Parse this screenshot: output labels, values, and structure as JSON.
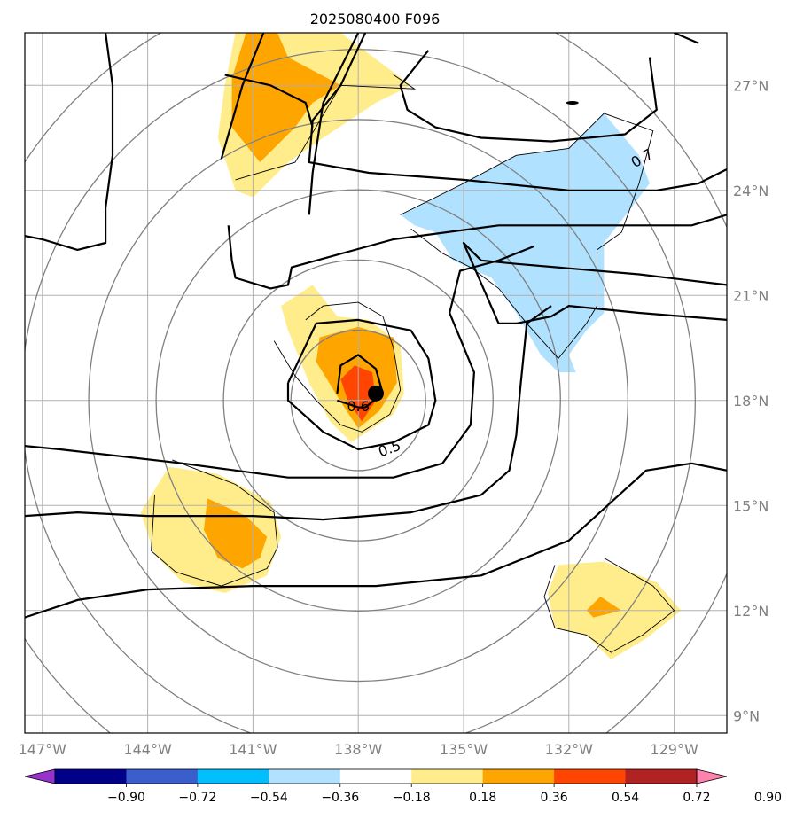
{
  "title": "2025080400 F096",
  "chart_data": {
    "type": "map-contour",
    "title": "2025080400 F096",
    "lon_range": [
      -147.5,
      -127.5
    ],
    "lat_range": [
      8.5,
      28.5
    ],
    "x_ticks": [
      {
        "lon": -147,
        "label": "147°W"
      },
      {
        "lon": -144,
        "label": "144°W"
      },
      {
        "lon": -141,
        "label": "141°W"
      },
      {
        "lon": -138,
        "label": "138°W"
      },
      {
        "lon": -135,
        "label": "135°W"
      },
      {
        "lon": -132,
        "label": "132°W"
      },
      {
        "lon": -129,
        "label": "129°W"
      }
    ],
    "y_ticks": [
      {
        "lat": 9,
        "label": "9°N"
      },
      {
        "lat": 12,
        "label": "12°N"
      },
      {
        "lat": 15,
        "label": "15°N"
      },
      {
        "lat": 18,
        "label": "18°N"
      },
      {
        "lat": 21,
        "label": "21°N"
      },
      {
        "lat": 24,
        "label": "24°N"
      },
      {
        "lat": 27,
        "label": "27°N"
      }
    ],
    "contour_labels": [
      {
        "text": "0.7",
        "lon": -129.9,
        "lat": 24.9
      },
      {
        "text": "0.6",
        "lon": -138.0,
        "lat": 17.8
      },
      {
        "text": "0.5",
        "lon": -137.1,
        "lat": 16.6
      }
    ],
    "storm_center": {
      "lon": -137.5,
      "lat": 18.2
    },
    "range_rings_deg": [
      2,
      4,
      6,
      8,
      10,
      12
    ],
    "colorbar": {
      "labels": [
        "−0.90",
        "−0.72",
        "−0.54",
        "−0.36",
        "−0.18",
        "0.18",
        "0.36",
        "0.54",
        "0.72",
        "0.90"
      ],
      "colors": [
        "#9932cc",
        "#00008b",
        "#3a5fcd",
        "#00bfff",
        "#b0e2ff",
        "#ffffff",
        "#ffec8b",
        "#ffa500",
        "#ff4500",
        "#b22222",
        "#ff82ab"
      ]
    },
    "shaded_regions": [
      {
        "level": "0.18-0.36",
        "color": "#ffec8b",
        "polys": [
          [
            [
              -141.5,
              28.5
            ],
            [
              -138.5,
              28.5
            ],
            [
              -136.5,
              27.0
            ],
            [
              -137.5,
              26.5
            ],
            [
              -139.0,
              25.5
            ],
            [
              -140.0,
              24.8
            ],
            [
              -141.0,
              23.8
            ],
            [
              -141.5,
              24.0
            ],
            [
              -142.0,
              25.5
            ],
            [
              -141.8,
              27.0
            ]
          ],
          [
            [
              -139.3,
              21.3
            ],
            [
              -138.6,
              20.4
            ],
            [
              -137.7,
              20.3
            ],
            [
              -136.8,
              19.6
            ],
            [
              -136.7,
              18.2
            ],
            [
              -137.0,
              17.6
            ],
            [
              -137.6,
              17.2
            ],
            [
              -138.2,
              16.8
            ],
            [
              -138.8,
              17.4
            ],
            [
              -139.4,
              18.5
            ],
            [
              -140.0,
              20.0
            ],
            [
              -140.2,
              20.7
            ]
          ],
          [
            [
              -143.4,
              16.1
            ],
            [
              -142.0,
              15.9
            ],
            [
              -140.5,
              15.1
            ],
            [
              -140.2,
              14.1
            ],
            [
              -140.6,
              13.0
            ],
            [
              -141.8,
              12.5
            ],
            [
              -143.0,
              12.8
            ],
            [
              -143.8,
              13.6
            ],
            [
              -144.2,
              14.8
            ]
          ],
          [
            [
              -131.0,
              13.4
            ],
            [
              -129.5,
              12.8
            ],
            [
              -128.8,
              12.0
            ],
            [
              -129.8,
              11.2
            ],
            [
              -130.8,
              10.6
            ],
            [
              -131.5,
              11.3
            ],
            [
              -132.4,
              11.5
            ],
            [
              -132.6,
              12.5
            ],
            [
              -132.3,
              13.3
            ]
          ]
        ]
      },
      {
        "level": "0.36-0.54",
        "color": "#ffa500",
        "polys": [
          [
            [
              -141.2,
              28.5
            ],
            [
              -140.3,
              28.5
            ],
            [
              -140.0,
              27.8
            ],
            [
              -138.5,
              27.0
            ],
            [
              -139.3,
              26.5
            ],
            [
              -139.8,
              25.8
            ],
            [
              -140.8,
              24.8
            ],
            [
              -141.6,
              25.8
            ],
            [
              -141.6,
              27.2
            ]
          ],
          [
            [
              -139.1,
              19.8
            ],
            [
              -138.0,
              20.1
            ],
            [
              -137.0,
              19.8
            ],
            [
              -136.9,
              18.5
            ],
            [
              -137.4,
              17.7
            ],
            [
              -138.0,
              17.2
            ],
            [
              -138.4,
              17.8
            ],
            [
              -139.2,
              19.1
            ]
          ],
          [
            [
              -142.3,
              15.2
            ],
            [
              -141.2,
              14.7
            ],
            [
              -140.6,
              14.1
            ],
            [
              -140.8,
              13.5
            ],
            [
              -141.3,
              13.2
            ],
            [
              -142.0,
              13.5
            ],
            [
              -142.4,
              14.3
            ]
          ],
          [
            [
              -131.1,
              12.4
            ],
            [
              -130.5,
              12.0
            ],
            [
              -131.3,
              11.8
            ],
            [
              -131.5,
              12.0
            ]
          ]
        ]
      },
      {
        "level": "0.54-0.72",
        "color": "#ff4500",
        "polys": [
          [
            [
              -138.1,
              19.0
            ],
            [
              -137.6,
              18.8
            ],
            [
              -137.5,
              18.0
            ],
            [
              -137.9,
              17.4
            ],
            [
              -138.3,
              18.0
            ],
            [
              -138.5,
              18.6
            ]
          ]
        ]
      },
      {
        "level": "-0.36--0.18",
        "color": "#b0e2ff",
        "polys": [
          [
            [
              -136.8,
              23.3
            ],
            [
              -135.0,
              24.2
            ],
            [
              -133.5,
              25.0
            ],
            [
              -132.0,
              25.2
            ],
            [
              -131.0,
              26.2
            ],
            [
              -130.0,
              25.0
            ],
            [
              -129.7,
              24.2
            ],
            [
              -130.3,
              23.4
            ],
            [
              -131.0,
              22.5
            ],
            [
              -131.0,
              20.5
            ],
            [
              -131.5,
              20.0
            ],
            [
              -132.0,
              19.3
            ],
            [
              -131.8,
              18.8
            ],
            [
              -132.3,
              18.8
            ],
            [
              -132.8,
              19.3
            ],
            [
              -133.5,
              20.5
            ],
            [
              -134.2,
              21.5
            ],
            [
              -135.3,
              22.0
            ],
            [
              -135.8,
              22.8
            ],
            [
              -136.4,
              23.0
            ]
          ]
        ]
      }
    ],
    "contour_lines_solid_black": [
      [
        [
          -147.5,
          22.7
        ],
        [
          -147.0,
          22.6
        ],
        [
          -146.0,
          22.3
        ],
        [
          -145.2,
          22.5
        ],
        [
          -145.2,
          23.5
        ],
        [
          -145.0,
          25.0
        ],
        [
          -145.0,
          27.0
        ],
        [
          -145.2,
          28.5
        ]
      ],
      [
        [
          -140.7,
          28.5
        ],
        [
          -141.3,
          27.0
        ],
        [
          -141.9,
          24.9
        ]
      ],
      [
        [
          -138.0,
          28.5
        ],
        [
          -139.0,
          26.5
        ],
        [
          -139.3,
          24.5
        ],
        [
          -139.4,
          23.3
        ]
      ],
      [
        [
          -137.8,
          28.5
        ],
        [
          -138.5,
          27.0
        ],
        [
          -139.3,
          26.0
        ],
        [
          -139.4,
          24.8
        ],
        [
          -137.7,
          24.5
        ],
        [
          -135.0,
          24.3
        ],
        [
          -132.0,
          24.0
        ],
        [
          -129.5,
          24.0
        ],
        [
          -128.3,
          24.2
        ],
        [
          -127.5,
          24.6
        ]
      ],
      [
        [
          -136.0,
          28.0
        ],
        [
          -136.8,
          27.0
        ],
        [
          -136.6,
          26.3
        ],
        [
          -135.8,
          25.8
        ],
        [
          -134.5,
          25.5
        ],
        [
          -132.5,
          25.4
        ],
        [
          -130.4,
          25.6
        ],
        [
          -129.5,
          26.3
        ],
        [
          -129.7,
          27.8
        ]
      ],
      [
        [
          -129.0,
          28.5
        ],
        [
          -128.3,
          28.2
        ]
      ],
      [
        [
          -141.8,
          27.3
        ],
        [
          -140.5,
          27.0
        ],
        [
          -139.5,
          26.5
        ],
        [
          -139.3,
          25.8
        ]
      ],
      [
        [
          -141.7,
          23.0
        ],
        [
          -141.6,
          22.0
        ],
        [
          -141.5,
          21.5
        ],
        [
          -140.5,
          21.2
        ],
        [
          -140.0,
          21.3
        ],
        [
          -139.9,
          21.8
        ],
        [
          -137.0,
          22.6
        ],
        [
          -134.0,
          23.0
        ],
        [
          -131.0,
          23.0
        ],
        [
          -128.5,
          23.0
        ],
        [
          -127.5,
          23.3
        ]
      ],
      [
        [
          -127.5,
          20.3
        ],
        [
          -130.0,
          20.5
        ],
        [
          -132.0,
          20.7
        ],
        [
          -132.5,
          20.4
        ],
        [
          -133.5,
          20.2
        ],
        [
          -134.0,
          20.2
        ],
        [
          -135.0,
          22.5
        ],
        [
          -134.5,
          22.0
        ],
        [
          -133.5,
          21.9
        ],
        [
          -130.0,
          21.6
        ],
        [
          -127.5,
          21.3
        ]
      ],
      [
        [
          -147.5,
          16.7
        ],
        [
          -146.5,
          16.6
        ],
        [
          -143.0,
          16.2
        ],
        [
          -140.0,
          15.8
        ],
        [
          -137.0,
          15.8
        ],
        [
          -135.6,
          16.2
        ],
        [
          -134.8,
          17.3
        ],
        [
          -134.7,
          18.8
        ],
        [
          -135.4,
          20.5
        ],
        [
          -135.1,
          21.7
        ],
        [
          -134.0,
          22.0
        ],
        [
          -133.0,
          22.4
        ]
      ],
      [
        [
          -147.5,
          14.7
        ],
        [
          -146.0,
          14.8
        ],
        [
          -144.0,
          14.7
        ],
        [
          -141.0,
          14.7
        ],
        [
          -139.0,
          14.6
        ],
        [
          -136.5,
          14.8
        ],
        [
          -134.5,
          15.3
        ],
        [
          -133.7,
          16.0
        ],
        [
          -133.5,
          17.0
        ],
        [
          -133.4,
          18.2
        ],
        [
          -133.2,
          20.2
        ],
        [
          -132.5,
          20.7
        ]
      ],
      [
        [
          -147.5,
          11.8
        ],
        [
          -146.0,
          12.3
        ],
        [
          -144.0,
          12.6
        ],
        [
          -141.0,
          12.7
        ],
        [
          -137.5,
          12.7
        ],
        [
          -134.5,
          13.0
        ],
        [
          -132.0,
          14.0
        ],
        [
          -129.8,
          16.0
        ],
        [
          -128.5,
          16.2
        ],
        [
          -127.5,
          16.0
        ]
      ],
      [
        [
          -140.0,
          18.5
        ],
        [
          -139.2,
          20.2
        ],
        [
          -138.0,
          20.3
        ],
        [
          -136.5,
          20.0
        ],
        [
          -136.0,
          19.2
        ],
        [
          -135.8,
          18.0
        ],
        [
          -136.0,
          17.3
        ],
        [
          -137.0,
          16.8
        ],
        [
          -138.0,
          16.6
        ],
        [
          -139.0,
          17.1
        ],
        [
          -140.0,
          18.0
        ],
        [
          -140.0,
          18.5
        ]
      ],
      [
        [
          -138.6,
          18.2
        ],
        [
          -138.5,
          19.0
        ],
        [
          -138.0,
          19.3
        ],
        [
          -137.5,
          18.9
        ],
        [
          -137.3,
          18.2
        ],
        [
          -137.8,
          17.8
        ],
        [
          -138.0,
          17.8
        ],
        [
          -138.6,
          18.0
        ]
      ]
    ],
    "contour_lines_thin_black": [
      [
        [
          -141.5,
          24.3
        ],
        [
          -139.8,
          24.8
        ],
        [
          -138.5,
          27.0
        ],
        [
          -136.4,
          26.9
        ],
        [
          -137.0,
          27.3
        ]
      ],
      [
        [
          -136.8,
          23.3
        ],
        [
          -135.0,
          24.2
        ],
        [
          -133.5,
          25.0
        ],
        [
          -132.0,
          25.2
        ],
        [
          -131.0,
          26.2
        ],
        [
          -129.6,
          25.7
        ],
        [
          -130.0,
          24.2
        ],
        [
          -130.5,
          22.8
        ],
        [
          -131.2,
          22.3
        ],
        [
          -131.2,
          20.7
        ],
        [
          -131.5,
          20.2
        ],
        [
          -132.3,
          19.2
        ],
        [
          -133.2,
          20.2
        ],
        [
          -134.0,
          21.2
        ],
        [
          -134.8,
          21.8
        ],
        [
          -135.6,
          22.2
        ],
        [
          -136.5,
          22.9
        ]
      ],
      [
        [
          -139.5,
          20.3
        ],
        [
          -139.0,
          20.7
        ],
        [
          -138.0,
          20.8
        ],
        [
          -137.3,
          20.4
        ],
        [
          -137.0,
          19.5
        ],
        [
          -136.8,
          18.3
        ],
        [
          -137.1,
          17.6
        ],
        [
          -137.9,
          17.1
        ],
        [
          -138.5,
          17.3
        ],
        [
          -139.2,
          18.0
        ],
        [
          -139.8,
          18.7
        ],
        [
          -140.4,
          19.7
        ]
      ],
      [
        [
          -143.3,
          16.3
        ],
        [
          -141.5,
          15.6
        ],
        [
          -140.4,
          14.8
        ],
        [
          -140.3,
          13.8
        ],
        [
          -140.6,
          13.2
        ],
        [
          -141.9,
          12.7
        ],
        [
          -143.2,
          13.1
        ],
        [
          -143.9,
          13.7
        ],
        [
          -143.8,
          15.3
        ]
      ],
      [
        [
          -131.0,
          13.5
        ],
        [
          -129.6,
          12.7
        ],
        [
          -129.0,
          12.0
        ],
        [
          -129.9,
          11.3
        ],
        [
          -130.8,
          10.8
        ],
        [
          -131.5,
          11.3
        ],
        [
          -132.4,
          11.5
        ],
        [
          -132.7,
          12.4
        ],
        [
          -132.4,
          13.3
        ]
      ]
    ]
  }
}
